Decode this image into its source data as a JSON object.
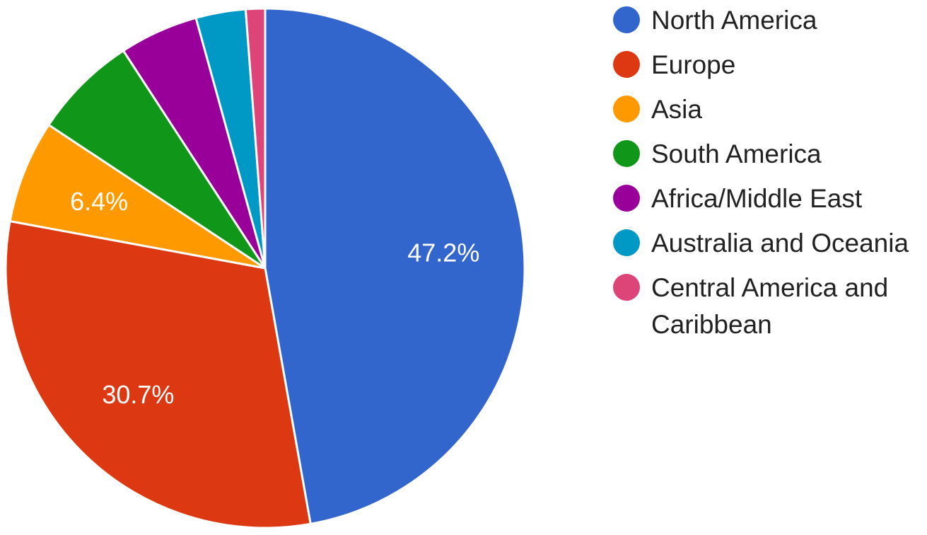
{
  "chart_data": {
    "type": "pie",
    "title": "",
    "start_angle_deg": 0,
    "direction": "clockwise",
    "legend_position": "right",
    "slices": [
      {
        "label": "North America",
        "value": 47.2,
        "color": "#3366cc",
        "data_label": "47.2%"
      },
      {
        "label": "Europe",
        "value": 30.7,
        "color": "#dc3912",
        "data_label": "30.7%"
      },
      {
        "label": "Asia",
        "value": 6.4,
        "color": "#ff9900",
        "data_label": "6.4%"
      },
      {
        "label": "South America",
        "value": 6.5,
        "color": "#109618",
        "data_label": ""
      },
      {
        "label": "Africa/Middle East",
        "value": 4.9,
        "color": "#990099",
        "data_label": ""
      },
      {
        "label": "Australia and Oceania",
        "value": 3.1,
        "color": "#0099c6",
        "data_label": ""
      },
      {
        "label": "Central America and Caribbean",
        "value": 1.2,
        "color": "#dd4477",
        "data_label": ""
      }
    ]
  }
}
